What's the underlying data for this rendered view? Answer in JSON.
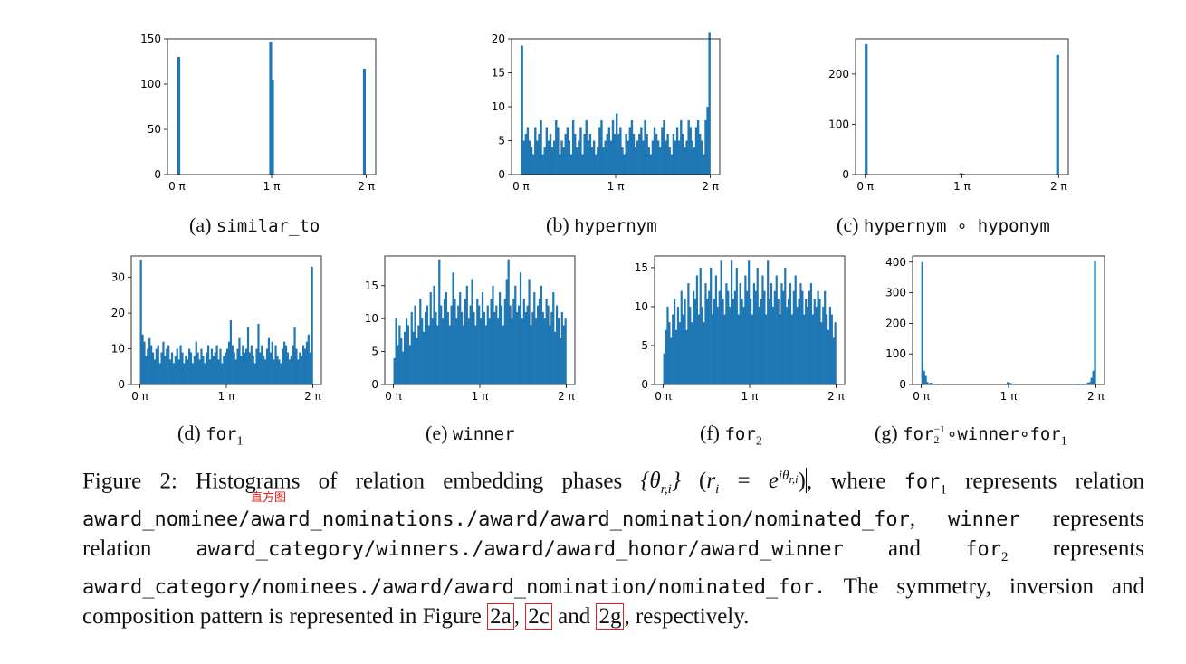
{
  "figure": {
    "bar_color": "#1f77b4",
    "ref_box_color": "#e0211d",
    "tick_label_pi": "π",
    "x_ticks": [
      "0",
      "1",
      "2"
    ]
  },
  "chart_data": [
    {
      "id": "a",
      "type": "bar",
      "title": "",
      "xlabel": "",
      "ylabel": "",
      "caption_prefix": "(a)",
      "caption_name": "similar_to",
      "xlim": [
        0,
        2
      ],
      "ylim": [
        0,
        150
      ],
      "yticks": [
        0,
        50,
        100,
        150
      ],
      "x": [
        0.02,
        0.99,
        1.01,
        1.98
      ],
      "values": [
        130,
        147,
        105,
        117
      ]
    },
    {
      "id": "b",
      "type": "bar",
      "title": "",
      "xlabel": "",
      "ylabel": "",
      "caption_prefix": "(b)",
      "caption_name": "hypernym",
      "xlim": [
        0,
        2
      ],
      "ylim": [
        0,
        20
      ],
      "yticks": [
        0,
        5,
        10,
        15,
        20
      ],
      "bins": 100,
      "values": [
        19,
        5,
        6,
        7,
        5,
        4,
        3,
        7,
        5,
        6,
        8,
        3,
        4,
        7,
        5,
        6,
        4,
        5,
        8,
        7,
        3,
        5,
        4,
        6,
        7,
        5,
        3,
        8,
        6,
        4,
        5,
        7,
        3,
        6,
        8,
        5,
        6,
        4,
        5,
        3,
        4,
        7,
        8,
        4,
        5,
        6,
        7,
        5,
        8,
        6,
        9,
        6,
        7,
        4,
        3,
        6,
        5,
        7,
        8,
        6,
        4,
        5,
        6,
        7,
        5,
        8,
        6,
        4,
        3,
        5,
        7,
        6,
        5,
        4,
        7,
        8,
        5,
        6,
        4,
        3,
        6,
        5,
        7,
        5,
        8,
        6,
        4,
        5,
        8,
        7,
        5,
        4,
        7,
        8,
        6,
        5,
        3,
        8,
        10,
        21
      ]
    },
    {
      "id": "c",
      "type": "bar",
      "title": "",
      "xlabel": "",
      "ylabel": "",
      "caption_prefix": "(c)",
      "caption_name": "hypernym ∘ hyponym",
      "xlim": [
        0,
        2
      ],
      "ylim": [
        0,
        270
      ],
      "yticks": [
        0,
        100,
        200
      ],
      "x": [
        0.01,
        0.99,
        1.01,
        1.99
      ],
      "values": [
        259,
        3,
        2,
        238
      ]
    },
    {
      "id": "d",
      "type": "bar",
      "title": "",
      "xlabel": "",
      "ylabel": "",
      "caption_prefix": "(d)",
      "caption_name": "for",
      "caption_sub": "1",
      "xlim": [
        0,
        2
      ],
      "ylim": [
        0,
        36
      ],
      "yticks": [
        0,
        10,
        20,
        30
      ],
      "bins": 100,
      "values": [
        35,
        14,
        12,
        8,
        10,
        13,
        11,
        9,
        7,
        10,
        11,
        6,
        9,
        12,
        8,
        10,
        11,
        7,
        9,
        6,
        8,
        10,
        7,
        11,
        9,
        6,
        8,
        7,
        10,
        9,
        6,
        8,
        12,
        9,
        7,
        10,
        8,
        6,
        9,
        11,
        7,
        10,
        8,
        9,
        11,
        7,
        10,
        6,
        8,
        9,
        10,
        12,
        18,
        11,
        9,
        7,
        10,
        13,
        8,
        11,
        9,
        10,
        16,
        9,
        11,
        8,
        6,
        10,
        17,
        9,
        11,
        8,
        7,
        10,
        13,
        9,
        12,
        7,
        11,
        8,
        7,
        6,
        10,
        12,
        11,
        9,
        7,
        8,
        11,
        16,
        10,
        7,
        9,
        8,
        11,
        10,
        12,
        14,
        9,
        33
      ]
    },
    {
      "id": "e",
      "type": "bar",
      "title": "",
      "xlabel": "",
      "ylabel": "",
      "caption_prefix": "(e)",
      "caption_name": "winner",
      "xlim": [
        0,
        2
      ],
      "ylim": [
        0,
        19.5
      ],
      "yticks": [
        0,
        5,
        10,
        15
      ],
      "bins": 100,
      "values": [
        4,
        10,
        6,
        9,
        7,
        5,
        8,
        10,
        9,
        6,
        11,
        8,
        12,
        7,
        9,
        13,
        10,
        8,
        11,
        12,
        9,
        14,
        10,
        15,
        11,
        9,
        19,
        12,
        10,
        13,
        14,
        11,
        9,
        12,
        17,
        13,
        10,
        12,
        14,
        11,
        9,
        13,
        15,
        10,
        12,
        16,
        11,
        9,
        13,
        12,
        10,
        14,
        11,
        9,
        12,
        10,
        13,
        15,
        11,
        12,
        10,
        14,
        12,
        9,
        13,
        16,
        19,
        12,
        10,
        13,
        15,
        11,
        12,
        17,
        10,
        13,
        11,
        12,
        16,
        9,
        11,
        14,
        10,
        12,
        13,
        15,
        11,
        10,
        13,
        12,
        9,
        11,
        14,
        8,
        12,
        10,
        7,
        11,
        9,
        10
      ]
    },
    {
      "id": "f",
      "type": "bar",
      "title": "",
      "xlabel": "",
      "ylabel": "",
      "caption_prefix": "(f)",
      "caption_name": "for",
      "caption_sub": "2",
      "xlim": [
        0,
        2
      ],
      "ylim": [
        0,
        16.5
      ],
      "yticks": [
        0,
        5,
        10,
        15
      ],
      "bins": 100,
      "values": [
        4,
        7,
        10,
        8,
        6,
        9,
        11,
        7,
        10,
        8,
        12,
        9,
        11,
        7,
        13,
        10,
        8,
        12,
        11,
        14,
        9,
        15,
        10,
        8,
        13,
        11,
        12,
        15,
        9,
        11,
        14,
        10,
        12,
        16,
        11,
        9,
        13,
        12,
        10,
        16,
        11,
        12,
        15,
        9,
        13,
        11,
        10,
        14,
        12,
        16,
        11,
        9,
        13,
        12,
        15,
        10,
        11,
        14,
        12,
        9,
        16,
        11,
        13,
        10,
        12,
        14,
        11,
        9,
        13,
        12,
        15,
        10,
        11,
        13,
        9,
        12,
        14,
        10,
        11,
        13,
        12,
        9,
        11,
        10,
        12,
        13,
        9,
        11,
        10,
        12,
        11,
        8,
        10,
        12,
        9,
        7,
        10,
        9,
        6,
        8
      ]
    },
    {
      "id": "g",
      "type": "bar",
      "title": "",
      "xlabel": "",
      "ylabel": "",
      "caption_prefix": "(g)",
      "caption_name": "for",
      "caption_sub": "2",
      "caption_sup": "−1",
      "caption_rest": "∘winner∘for",
      "caption_rest_sub": "1",
      "xlim": [
        0,
        2
      ],
      "ylim": [
        0,
        420
      ],
      "yticks": [
        0,
        100,
        200,
        300,
        400
      ],
      "bins": 100,
      "values": [
        400,
        45,
        28,
        8,
        4,
        6,
        3,
        2,
        2,
        3,
        2,
        1,
        2,
        1,
        1,
        1,
        1,
        1,
        1,
        0,
        0,
        1,
        0,
        1,
        0,
        0,
        0,
        0,
        0,
        0,
        0,
        0,
        0,
        0,
        0,
        0,
        0,
        0,
        0,
        0,
        0,
        0,
        0,
        0,
        0,
        0,
        0,
        0,
        3,
        8,
        6,
        4,
        0,
        0,
        0,
        0,
        0,
        0,
        0,
        0,
        0,
        0,
        0,
        0,
        0,
        0,
        0,
        0,
        0,
        0,
        0,
        0,
        0,
        0,
        0,
        0,
        0,
        0,
        0,
        0,
        1,
        0,
        1,
        1,
        1,
        1,
        1,
        2,
        1,
        2,
        3,
        2,
        3,
        2,
        4,
        6,
        8,
        22,
        45,
        405
      ]
    }
  ],
  "caption": {
    "figure_label": "Figure 2:",
    "intro": "Histograms of relation embedding phases",
    "math": "{θr,i} (ri = eiθr,i)",
    "where": ", where",
    "for1": "for",
    "for1_sub": "1",
    "represents": "represents relation",
    "rel1": "award_nominee/award_nominations./award/award_nomination/nominated_for",
    "comma": ",",
    "winner": "winner",
    "represents2": "represents relation",
    "rel2": "award_category/winners./award/award_honor/award_winner",
    "and": "and",
    "for2": "for",
    "for2_sub": "2",
    "represents3": "represents",
    "rel3": "award_category/nominees./award/award_nomination/nominated_for.",
    "sentence": "The symmetry, inversion and composition pattern is represented in Figure",
    "ref1": "2a",
    "ref2": "2c",
    "ref_and": "and",
    "ref3": "2g",
    "ending": "respectively.",
    "note_mark": "直方图"
  }
}
